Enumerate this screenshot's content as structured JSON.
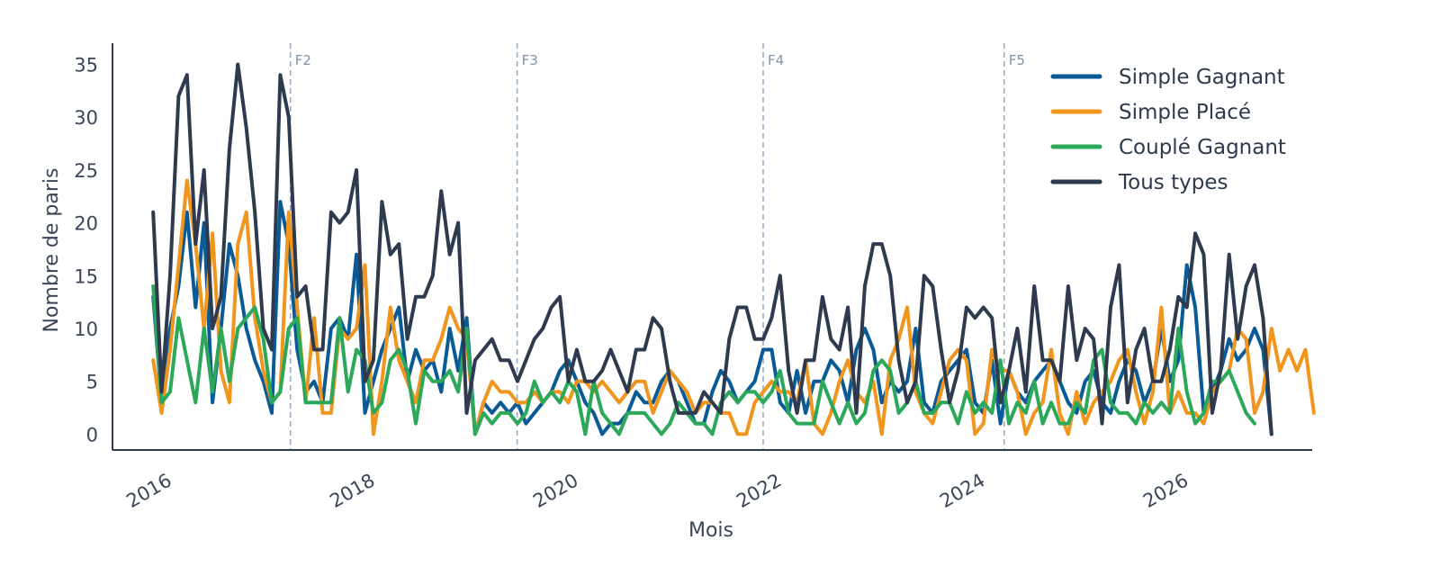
{
  "chart_data": {
    "type": "line",
    "title": "",
    "xlabel": "Mois",
    "ylabel": "Nombre de paris",
    "xlim": [
      2015.6,
      2027.4
    ],
    "ylim": [
      -1.5,
      37
    ],
    "x_ticks": [
      2016,
      2018,
      2020,
      2022,
      2024,
      2026
    ],
    "x_tick_labels": [
      "2016",
      "2018",
      "2020",
      "2022",
      "2024",
      "2026"
    ],
    "y_ticks": [
      0,
      5,
      10,
      15,
      20,
      25,
      30,
      35
    ],
    "y_tick_labels": [
      "0",
      "5",
      "10",
      "15",
      "20",
      "25",
      "30",
      "35"
    ],
    "grid": false,
    "legend_position": "top-right",
    "phase_markers": [
      {
        "label": "F2",
        "x": 2017.35
      },
      {
        "label": "F3",
        "x": 2019.58
      },
      {
        "label": "F4",
        "x": 2022.0
      },
      {
        "label": "F5",
        "x": 2024.37
      }
    ],
    "x_start": 2016.0,
    "x_step": 0.0833333,
    "series": [
      {
        "name": "Simple Gagnant",
        "color": "#0a5a96",
        "values": [
          13,
          3,
          10,
          14,
          21,
          12,
          20,
          3,
          10,
          18,
          15,
          10,
          7,
          5,
          2,
          22,
          18,
          8,
          4,
          5,
          3,
          10,
          11,
          9,
          17,
          2,
          5,
          8,
          10,
          12,
          5,
          8,
          6,
          7,
          4,
          10,
          6,
          11,
          0,
          3,
          2,
          3,
          2,
          3,
          1,
          2,
          3,
          4,
          6,
          7,
          5,
          3,
          2,
          0,
          1,
          1,
          2,
          4,
          3,
          3,
          5,
          6,
          5,
          3,
          1,
          1,
          4,
          6,
          5,
          3,
          4,
          5,
          8,
          8,
          3,
          2,
          6,
          2,
          5,
          5,
          7,
          6,
          3,
          8,
          10,
          8,
          3,
          5,
          4,
          5,
          10,
          3,
          2,
          5,
          6,
          7,
          8,
          3,
          2,
          7,
          1,
          6,
          4,
          3,
          5,
          6,
          7,
          5,
          3,
          2,
          5,
          6,
          3,
          2,
          5,
          7,
          6,
          3,
          5,
          10,
          5,
          7,
          16,
          12,
          2,
          4,
          6,
          9,
          7,
          8,
          10,
          8,
          0
        ]
      },
      {
        "name": "Simple Placé",
        "color": "#f0961e",
        "values": [
          7,
          2,
          8,
          16,
          24,
          18,
          10,
          19,
          6,
          3,
          18,
          21,
          11,
          6,
          3,
          4,
          21,
          12,
          3,
          11,
          2,
          2,
          10,
          9,
          10,
          16,
          0,
          5,
          12,
          7,
          5,
          3,
          7,
          7,
          9,
          12,
          10,
          9,
          0,
          3,
          5,
          4,
          4,
          3,
          3,
          4,
          3,
          4,
          4,
          3,
          5,
          5,
          4,
          5,
          4,
          3,
          4,
          5,
          5,
          2,
          4,
          6,
          5,
          4,
          2,
          3,
          3,
          2,
          2,
          0,
          0,
          3,
          4,
          5,
          4,
          4,
          3,
          7,
          1,
          0,
          2,
          5,
          7,
          4,
          3,
          5,
          0,
          7,
          9,
          12,
          4,
          2,
          1,
          4,
          7,
          8,
          7,
          0,
          1,
          8,
          6,
          6,
          4,
          0,
          2,
          3,
          8,
          2,
          0,
          4,
          1,
          3,
          4,
          5,
          7,
          8,
          4,
          1,
          4,
          12,
          2,
          4,
          2,
          2,
          1,
          4,
          5,
          6,
          10,
          9,
          2,
          4,
          10,
          6,
          8,
          6,
          8,
          2
        ]
      },
      {
        "name": "Couplé Gagnant",
        "color": "#2ca85a",
        "values": [
          14,
          3,
          4,
          11,
          7,
          3,
          10,
          4,
          10,
          5,
          10,
          11,
          12,
          9,
          3,
          4,
          10,
          11,
          3,
          3,
          3,
          3,
          11,
          4,
          8,
          7,
          2,
          3,
          7,
          8,
          6,
          1,
          6,
          5,
          5,
          6,
          4,
          10,
          0,
          2,
          1,
          2,
          2,
          1,
          2,
          5,
          3,
          4,
          3,
          5,
          4,
          0,
          5,
          2,
          1,
          0,
          2,
          2,
          2,
          1,
          0,
          1,
          3,
          2,
          1,
          1,
          0,
          3,
          4,
          3,
          4,
          4,
          3,
          4,
          6,
          2,
          1,
          1,
          1,
          5,
          3,
          1,
          3,
          1,
          2,
          6,
          7,
          6,
          2,
          3,
          5,
          2,
          2,
          3,
          3,
          1,
          4,
          2,
          3,
          2,
          7,
          1,
          3,
          2,
          5,
          1,
          3,
          1,
          1,
          3,
          2,
          7,
          8,
          3,
          2,
          2,
          1,
          3,
          2,
          3,
          2,
          10,
          4,
          1,
          2,
          5,
          5,
          6,
          4,
          2,
          1
        ]
      },
      {
        "name": "Tous types",
        "color": "#2e3a4d",
        "values": [
          21,
          4,
          15,
          32,
          34,
          18,
          25,
          10,
          13,
          27,
          35,
          29,
          21,
          10,
          8,
          34,
          30,
          13,
          14,
          8,
          8,
          21,
          20,
          21,
          25,
          5,
          7,
          22,
          17,
          18,
          9,
          13,
          13,
          15,
          23,
          17,
          20,
          2,
          7,
          8,
          9,
          7,
          7,
          5,
          7,
          9,
          10,
          12,
          13,
          5,
          8,
          5,
          5,
          6,
          8,
          6,
          4,
          8,
          8,
          11,
          10,
          5,
          2,
          2,
          2,
          4,
          3,
          2,
          9,
          12,
          12,
          9,
          9,
          11,
          15,
          6,
          2,
          7,
          7,
          13,
          9,
          8,
          12,
          2,
          14,
          18,
          18,
          15,
          7,
          3,
          5,
          15,
          14,
          8,
          3,
          6,
          12,
          11,
          12,
          11,
          3,
          6,
          10,
          4,
          14,
          7,
          7,
          5,
          14,
          7,
          10,
          9,
          1,
          12,
          16,
          3,
          8,
          10,
          5,
          5,
          8,
          13,
          12,
          19,
          17,
          2,
          6,
          17,
          9,
          14,
          16,
          11,
          0
        ]
      }
    ]
  }
}
